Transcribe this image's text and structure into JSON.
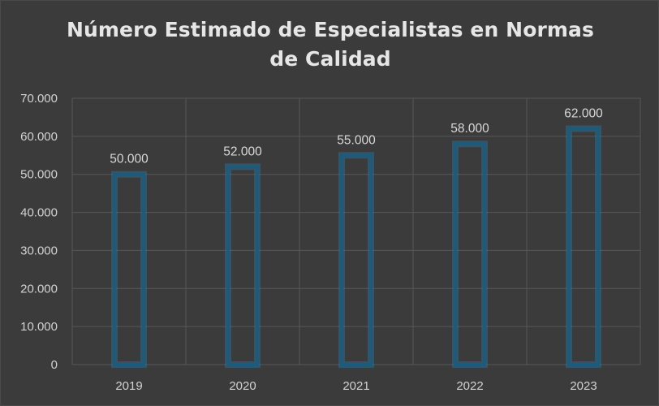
{
  "chart_data": {
    "type": "bar",
    "title": "Número Estimado de Especialistas en Normas de Calidad",
    "categories": [
      "2019",
      "2020",
      "2021",
      "2022",
      "2023"
    ],
    "values": [
      50000,
      52000,
      55000,
      58000,
      62000
    ],
    "value_labels": [
      "50.000",
      "52.000",
      "55.000",
      "58.000",
      "62.000"
    ],
    "yticks": [
      0,
      10000,
      20000,
      30000,
      40000,
      50000,
      60000,
      70000
    ],
    "ytick_labels": [
      "0",
      "10.000",
      "20.000",
      "30.000",
      "40.000",
      "50.000",
      "60.000",
      "70.000"
    ],
    "ylim": [
      0,
      70000
    ],
    "xlabel": "",
    "ylabel": "",
    "grid": true,
    "legend": "none",
    "colors": {
      "background": "#3b3b3b",
      "bar_outline": "#1d5b7c",
      "bar_glow": "#2a86b6",
      "gridline": "#575757",
      "text": "#d2d2d2",
      "title": "#e6e6e6"
    }
  }
}
